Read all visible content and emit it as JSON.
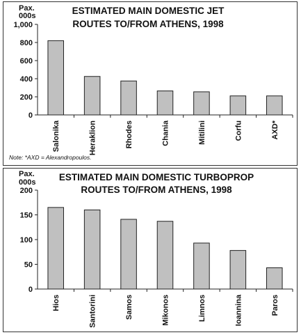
{
  "chart_data": [
    {
      "type": "bar",
      "title_lines": [
        "ESTIMATED MAIN DOMESTIC JET",
        "ROUTES TO/FROM ATHENS, 1998"
      ],
      "unit_lines": [
        "Pax.",
        "000s"
      ],
      "categories": [
        "Salonika",
        "Heraklion",
        "Rhodes",
        "Chania",
        "Mitilini",
        "Corfu",
        "AXD*"
      ],
      "values": [
        820,
        425,
        375,
        265,
        255,
        210,
        210
      ],
      "ylim": [
        0,
        1000
      ],
      "yticks": [
        0,
        200,
        400,
        600,
        800,
        1000
      ],
      "ytick_labels": [
        "0",
        "200",
        "400",
        "600",
        "800",
        "1,000"
      ],
      "grid": false,
      "note": "Note: *AXD = Alexandropoulos."
    },
    {
      "type": "bar",
      "title_lines": [
        "ESTIMATED MAIN DOMESTIC TURBOPROP",
        "ROUTES TO/FROM ATHENS, 1998"
      ],
      "unit_lines": [
        "Pax.",
        "000s"
      ],
      "categories": [
        "Hios",
        "Santorini",
        "Samos",
        "Mikonos",
        "Limnos",
        "Ioannina",
        "Paros"
      ],
      "values": [
        165,
        160,
        141,
        137,
        93,
        78,
        43
      ],
      "ylim": [
        0,
        200
      ],
      "yticks": [
        0,
        50,
        100,
        150,
        200
      ],
      "ytick_labels": [
        "0",
        "50",
        "100",
        "150",
        "200"
      ],
      "grid": false
    }
  ]
}
